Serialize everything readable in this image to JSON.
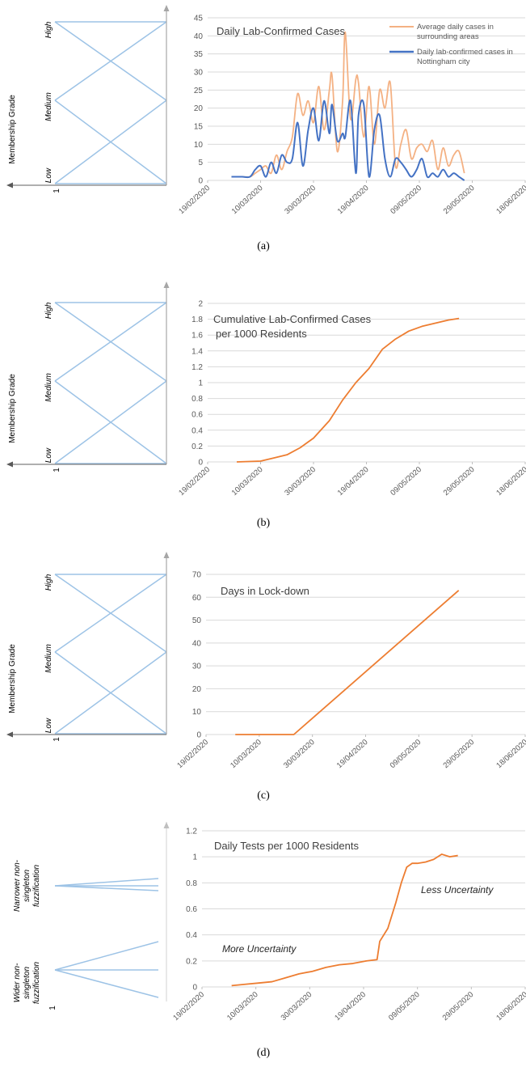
{
  "axis_dates": [
    "19/02/2020",
    "10/03/2020",
    "30/03/2020",
    "19/04/2020",
    "09/05/2020",
    "29/05/2020",
    "18/06/2020"
  ],
  "membership": {
    "title": "Membership Grade",
    "levels": [
      "High",
      "Medium",
      "Low"
    ],
    "one": "1",
    "d_levels": [
      "Narrower non-singleton fuzzification",
      "Wider non-singleton fuzzification"
    ]
  },
  "captions": [
    "(a)",
    "(b)",
    "(c)",
    "(d)"
  ],
  "notes": {
    "less": "Less Uncertainty",
    "more": "More Uncertainty"
  },
  "colors": {
    "orange": "#ED7D31",
    "light_orange": "#F4B183",
    "blue": "#4472C4",
    "mf_line": "#9DC3E6",
    "grid": "#D9D9D9"
  },
  "chart_data": [
    {
      "type": "line",
      "title": "Daily Lab-Confirmed Cases",
      "ylim": [
        0,
        45
      ],
      "yticks": [
        0,
        5,
        10,
        15,
        20,
        25,
        30,
        35,
        40,
        45
      ],
      "series": [
        {
          "name": "Average daily cases in surrounding areas",
          "color": "#F4B183",
          "x": [
            "28/02/2020",
            "03/03/2020",
            "06/03/2020",
            "08/03/2020",
            "10/03/2020",
            "12/03/2020",
            "14/03/2020",
            "16/03/2020",
            "18/03/2020",
            "20/03/2020",
            "22/03/2020",
            "24/03/2020",
            "26/03/2020",
            "28/03/2020",
            "30/03/2020",
            "01/04/2020",
            "03/04/2020",
            "05/04/2020",
            "06/04/2020",
            "08/04/2020",
            "10/04/2020",
            "11/04/2020",
            "13/04/2020",
            "15/04/2020",
            "16/04/2020",
            "18/04/2020",
            "20/04/2020",
            "22/04/2020",
            "24/04/2020",
            "26/04/2020",
            "28/04/2020",
            "30/04/2020",
            "02/05/2020",
            "04/05/2020",
            "06/05/2020",
            "08/05/2020",
            "10/05/2020",
            "12/05/2020",
            "14/05/2020",
            "16/05/2020",
            "18/05/2020",
            "20/05/2020",
            "22/05/2020",
            "24/05/2020",
            "26/05/2020"
          ],
          "y": [
            1,
            1,
            1,
            2,
            3,
            4,
            2,
            7,
            3,
            8,
            12,
            24,
            18,
            22,
            16,
            26,
            14,
            25,
            29,
            8,
            22,
            41,
            17,
            28,
            27,
            12,
            26,
            10,
            25,
            20,
            27,
            4,
            10,
            14,
            6,
            9,
            10,
            8,
            11,
            3,
            9,
            4,
            7,
            8,
            2
          ]
        },
        {
          "name": "Daily lab-confirmed cases in Nottingham city",
          "color": "#4472C4",
          "x": [
            "28/02/2020",
            "03/03/2020",
            "06/03/2020",
            "08/03/2020",
            "10/03/2020",
            "12/03/2020",
            "14/03/2020",
            "16/03/2020",
            "18/03/2020",
            "20/03/2020",
            "22/03/2020",
            "24/03/2020",
            "26/03/2020",
            "28/03/2020",
            "30/03/2020",
            "01/04/2020",
            "03/04/2020",
            "05/04/2020",
            "06/04/2020",
            "08/04/2020",
            "10/04/2020",
            "11/04/2020",
            "13/04/2020",
            "15/04/2020",
            "16/04/2020",
            "18/04/2020",
            "20/04/2020",
            "22/04/2020",
            "24/04/2020",
            "26/04/2020",
            "28/04/2020",
            "30/04/2020",
            "02/05/2020",
            "04/05/2020",
            "06/05/2020",
            "08/05/2020",
            "10/05/2020",
            "12/05/2020",
            "14/05/2020",
            "16/05/2020",
            "18/05/2020",
            "20/05/2020",
            "22/05/2020",
            "24/05/2020",
            "26/05/2020"
          ],
          "y": [
            1,
            1,
            1,
            3,
            4,
            1,
            5,
            2,
            7,
            5,
            6,
            16,
            4,
            14,
            20,
            11,
            22,
            13,
            21,
            11,
            13,
            12,
            22,
            2,
            18,
            21,
            1,
            14,
            18,
            6,
            1,
            6,
            5,
            3,
            1,
            3,
            6,
            1,
            2,
            1,
            3,
            1,
            2,
            1,
            0
          ]
        }
      ]
    },
    {
      "type": "line",
      "title": "Cumulative Lab-Confirmed Cases",
      "subtitle": "per 1000 Residents",
      "ylim": [
        0,
        2
      ],
      "yticks": [
        0,
        0.2,
        0.4,
        0.6,
        0.8,
        1,
        1.2,
        1.4,
        1.6,
        1.8,
        2
      ],
      "series": [
        {
          "color": "#ED7D31",
          "x": [
            "01/03/2020",
            "10/03/2020",
            "15/03/2020",
            "20/03/2020",
            "25/03/2020",
            "30/03/2020",
            "05/04/2020",
            "10/04/2020",
            "15/04/2020",
            "20/04/2020",
            "25/04/2020",
            "30/04/2020",
            "05/05/2020",
            "10/05/2020",
            "15/05/2020",
            "20/05/2020",
            "24/05/2020"
          ],
          "y": [
            0,
            0.01,
            0.05,
            0.09,
            0.18,
            0.3,
            0.52,
            0.78,
            1.0,
            1.18,
            1.42,
            1.55,
            1.65,
            1.71,
            1.75,
            1.79,
            1.81
          ]
        }
      ]
    },
    {
      "type": "line",
      "title": "Days in Lock-down",
      "ylim": [
        0,
        70
      ],
      "yticks": [
        0,
        10,
        20,
        30,
        40,
        50,
        60,
        70
      ],
      "series": [
        {
          "color": "#ED7D31",
          "x": [
            "01/03/2020",
            "23/03/2020",
            "24/05/2020"
          ],
          "y": [
            0,
            0,
            63
          ]
        }
      ]
    },
    {
      "type": "line",
      "title": "Daily Tests per 1000 Residents",
      "ylim": [
        0,
        1.2
      ],
      "yticks": [
        0,
        0.2,
        0.4,
        0.6,
        0.8,
        1,
        1.2
      ],
      "series": [
        {
          "color": "#ED7D31",
          "x": [
            "01/03/2020",
            "06/03/2020",
            "11/03/2020",
            "16/03/2020",
            "21/03/2020",
            "26/03/2020",
            "31/03/2020",
            "05/04/2020",
            "10/04/2020",
            "15/04/2020",
            "20/04/2020",
            "24/04/2020",
            "25/04/2020",
            "28/04/2020",
            "01/05/2020",
            "03/05/2020",
            "05/05/2020",
            "07/05/2020",
            "09/05/2020",
            "12/05/2020",
            "15/05/2020",
            "18/05/2020",
            "21/05/2020",
            "24/05/2020"
          ],
          "y": [
            0.01,
            0.02,
            0.03,
            0.04,
            0.07,
            0.1,
            0.12,
            0.15,
            0.17,
            0.18,
            0.2,
            0.21,
            0.35,
            0.45,
            0.65,
            0.8,
            0.92,
            0.95,
            0.95,
            0.96,
            0.98,
            1.02,
            1.0,
            1.01
          ]
        }
      ]
    }
  ]
}
